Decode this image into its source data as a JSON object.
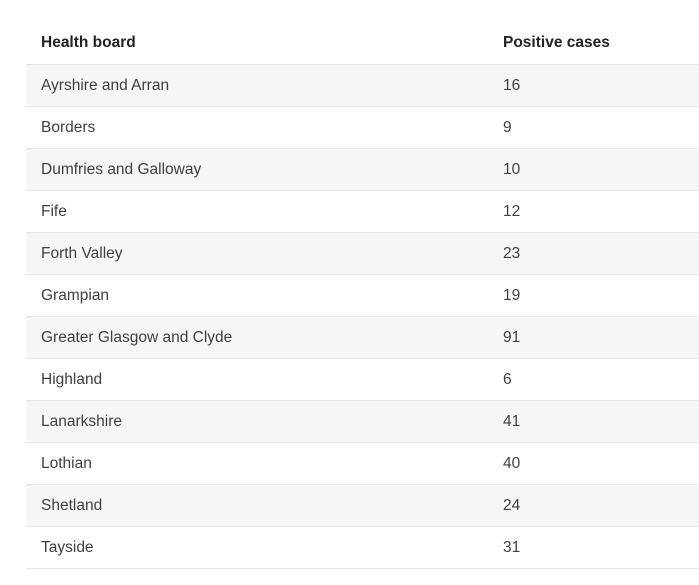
{
  "table": {
    "headers": [
      "Health board",
      "Positive cases"
    ],
    "rows": [
      [
        "Ayrshire and Arran",
        "16"
      ],
      [
        "Borders",
        "9"
      ],
      [
        "Dumfries and Galloway",
        "10"
      ],
      [
        "Fife",
        "12"
      ],
      [
        "Forth Valley",
        "23"
      ],
      [
        "Grampian",
        "19"
      ],
      [
        "Greater Glasgow and Clyde",
        "91"
      ],
      [
        "Highland",
        "6"
      ],
      [
        "Lanarkshire",
        "41"
      ],
      [
        "Lothian",
        "40"
      ],
      [
        "Shetland",
        "24"
      ],
      [
        "Tayside",
        "31"
      ]
    ]
  }
}
